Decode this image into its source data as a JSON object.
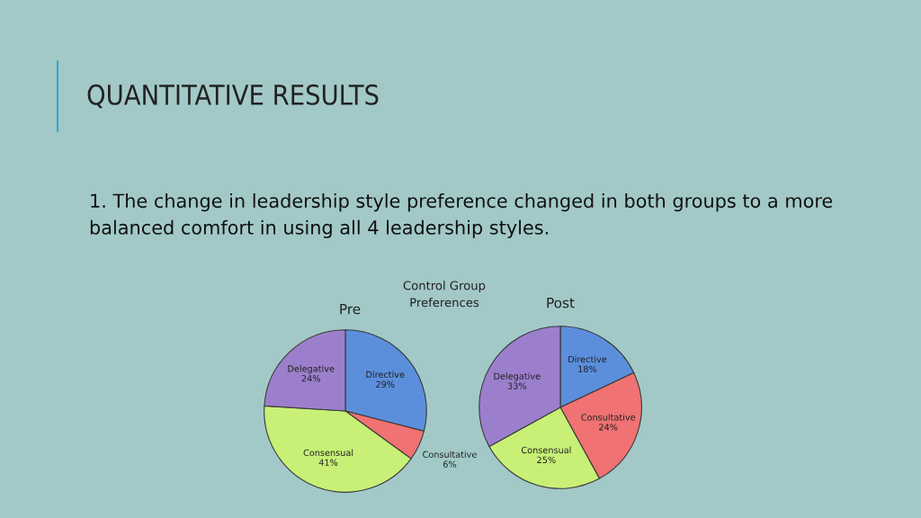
{
  "chart_data": [
    {
      "type": "pie",
      "title": "Pre",
      "annotations": [
        "QUANTITATIVE RESULTS",
        "1. The change in leadership style preference changed in both groups to a more balanced comfort in using all 4 leadership styles.",
        "Control Group\nPreferences"
      ],
      "categories": [
        "Directive",
        "Consultative",
        "Consensual",
        "Delegative"
      ],
      "values": [
        29,
        6,
        41,
        24
      ],
      "value_labels": [
        "29%",
        "6%",
        "41%",
        "24%"
      ],
      "colors": [
        "#5b8fdc",
        "#f07272",
        "#c8f076",
        "#9c7fcc"
      ]
    },
    {
      "type": "pie",
      "title": "Post",
      "categories": [
        "Directive",
        "Consultative",
        "Consensual",
        "Delegative"
      ],
      "values": [
        18,
        24,
        25,
        33
      ],
      "value_labels": [
        "18%",
        "24%",
        "25%",
        "33%"
      ],
      "colors": [
        "#5b8fdc",
        "#f07272",
        "#c8f076",
        "#9c7fcc"
      ]
    }
  ]
}
